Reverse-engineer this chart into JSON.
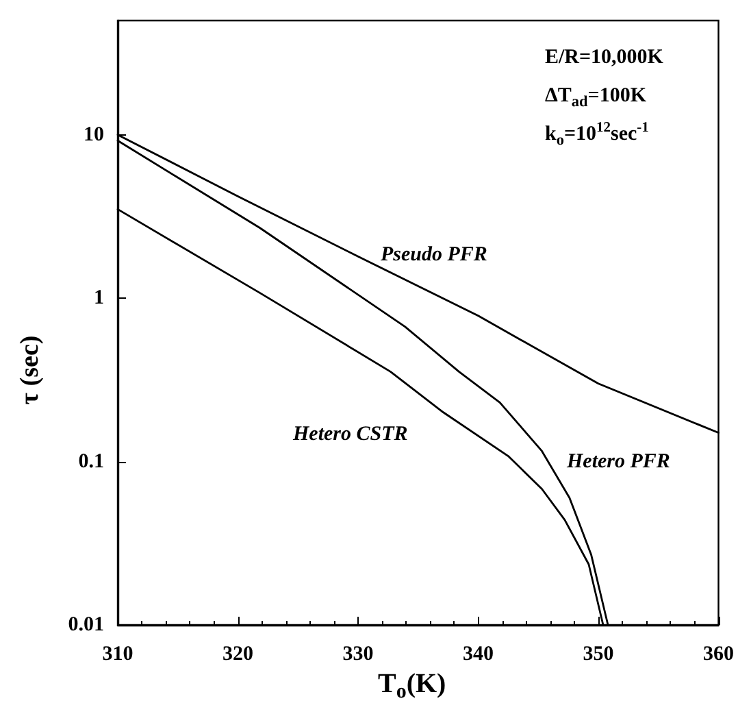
{
  "chart_data": {
    "type": "line",
    "xlabel": "T$_{o}$(K)",
    "ylabel": "τ (sec)",
    "log": "y",
    "xlim": [
      310,
      360
    ],
    "xticks": [
      310,
      320,
      330,
      340,
      350,
      360
    ],
    "ylim": [
      0.01,
      50
    ],
    "yticks": [
      0.01,
      0.1,
      1,
      10
    ],
    "grid": false,
    "legend": false,
    "marker": "none",
    "line_style": "solid",
    "annotations": [
      "E/R=10,000K",
      "ΔT$_{ad}$=100K",
      "k$_{o}$=10$^{12}$sec$^{-1}$"
    ],
    "series": [
      {
        "name": "Pseudo PFR",
        "color": "#000000",
        "x": [
          310,
          320,
          330,
          340,
          350,
          360
        ],
        "values": [
          10,
          4.2,
          1.8,
          0.78,
          0.3,
          0.15
        ]
      },
      {
        "name": "Hetero PFR",
        "color": "#000000",
        "x": [
          310,
          321.8,
          333.9,
          338.4,
          341.8,
          345.3,
          347.6,
          349.4,
          350.8
        ],
        "values": [
          9.2,
          2.7,
          0.67,
          0.355,
          0.23,
          0.116,
          0.06,
          0.027,
          0.01
        ]
      },
      {
        "name": "Hetero CSTR",
        "color": "#000000",
        "x": [
          310,
          321.8,
          332.7,
          337.1,
          342.5,
          345.3,
          347.2,
          349.2,
          350.4
        ],
        "values": [
          3.5,
          1.08,
          0.355,
          0.2,
          0.108,
          0.068,
          0.044,
          0.0235,
          0.01
        ]
      }
    ]
  }
}
